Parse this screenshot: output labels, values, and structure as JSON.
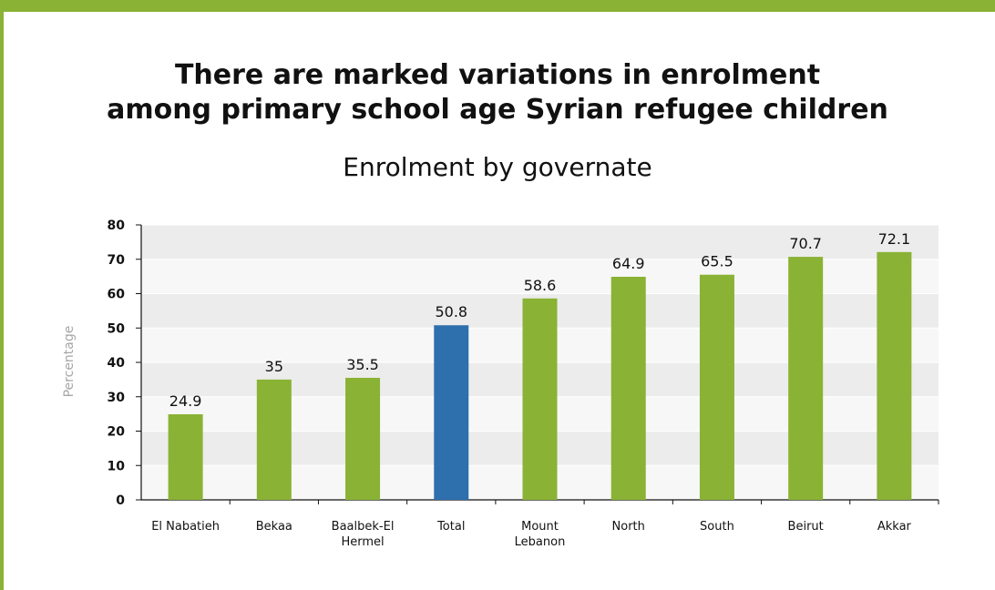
{
  "chart_data": {
    "type": "bar",
    "title": "There are marked variations in enrolment among primary school age Syrian refugee children",
    "title_lines": [
      "There are marked variations in enrolment",
      "among primary school age Syrian refugee children"
    ],
    "subtitle": "Enrolment by governate",
    "ylabel": "Percentage",
    "xlabel": "",
    "ylim": [
      0,
      80
    ],
    "yticks": [
      0,
      10,
      20,
      30,
      40,
      50,
      60,
      70,
      80
    ],
    "grid": "horizontal alternating bands",
    "categories": [
      "El Nabatieh",
      "Bekaa",
      "Baalbek-El Hermel",
      "Total",
      "Mount Lebanon",
      "North",
      "South",
      "Beirut",
      "Akkar"
    ],
    "category_lines": [
      [
        "El Nabatieh"
      ],
      [
        "Bekaa"
      ],
      [
        "Baalbek-El",
        "Hermel"
      ],
      [
        "Total"
      ],
      [
        "Mount",
        "Lebanon"
      ],
      [
        "North"
      ],
      [
        "South"
      ],
      [
        "Beirut"
      ],
      [
        "Akkar"
      ]
    ],
    "values": [
      24.9,
      35,
      35.5,
      50.8,
      58.6,
      64.9,
      65.5,
      70.7,
      72.1
    ],
    "value_labels": [
      "24.9",
      "35",
      "35.5",
      "50.8",
      "58.6",
      "64.9",
      "65.5",
      "70.7",
      "72.1"
    ],
    "highlight_category": "Total",
    "colors": {
      "bar": "#8ab234",
      "highlight": "#2e6fad",
      "band": "#ececec",
      "frame": "#8ab234"
    }
  }
}
